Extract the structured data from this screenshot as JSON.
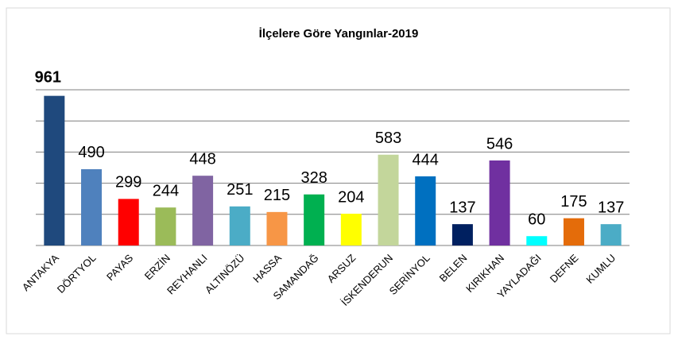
{
  "chart_data": {
    "type": "bar",
    "title": "İlçelere Göre Yangınlar-2019",
    "categories": [
      "ANTAKYA",
      "DÖRTYOL",
      "PAYAS",
      "ERZİN",
      "REYHANLI",
      "ALTINÖZÜ",
      "HASSA",
      "SAMANDAĞ",
      "ARSUZ",
      "İSKENDERUN",
      "SERİNYOL",
      "BELEN",
      "KIRIKHAN",
      "YAYLADAĞI",
      "DEFNE",
      "KUMLU"
    ],
    "values": [
      961,
      490,
      299,
      244,
      448,
      251,
      215,
      328,
      204,
      583,
      444,
      137,
      546,
      60,
      175,
      137
    ],
    "colors": [
      "#1f497d",
      "#4f81bd",
      "#ff0000",
      "#9bbb59",
      "#8064a2",
      "#4bacc6",
      "#f79646",
      "#00b050",
      "#ffff00",
      "#c3d69b",
      "#0070c0",
      "#002060",
      "#7030a0",
      "#00ffff",
      "#e46c0a",
      "#4bacc6"
    ],
    "ylim": [
      0,
      1000
    ],
    "yticks": [
      0,
      200,
      400,
      600,
      800,
      1000
    ],
    "grid": true
  }
}
